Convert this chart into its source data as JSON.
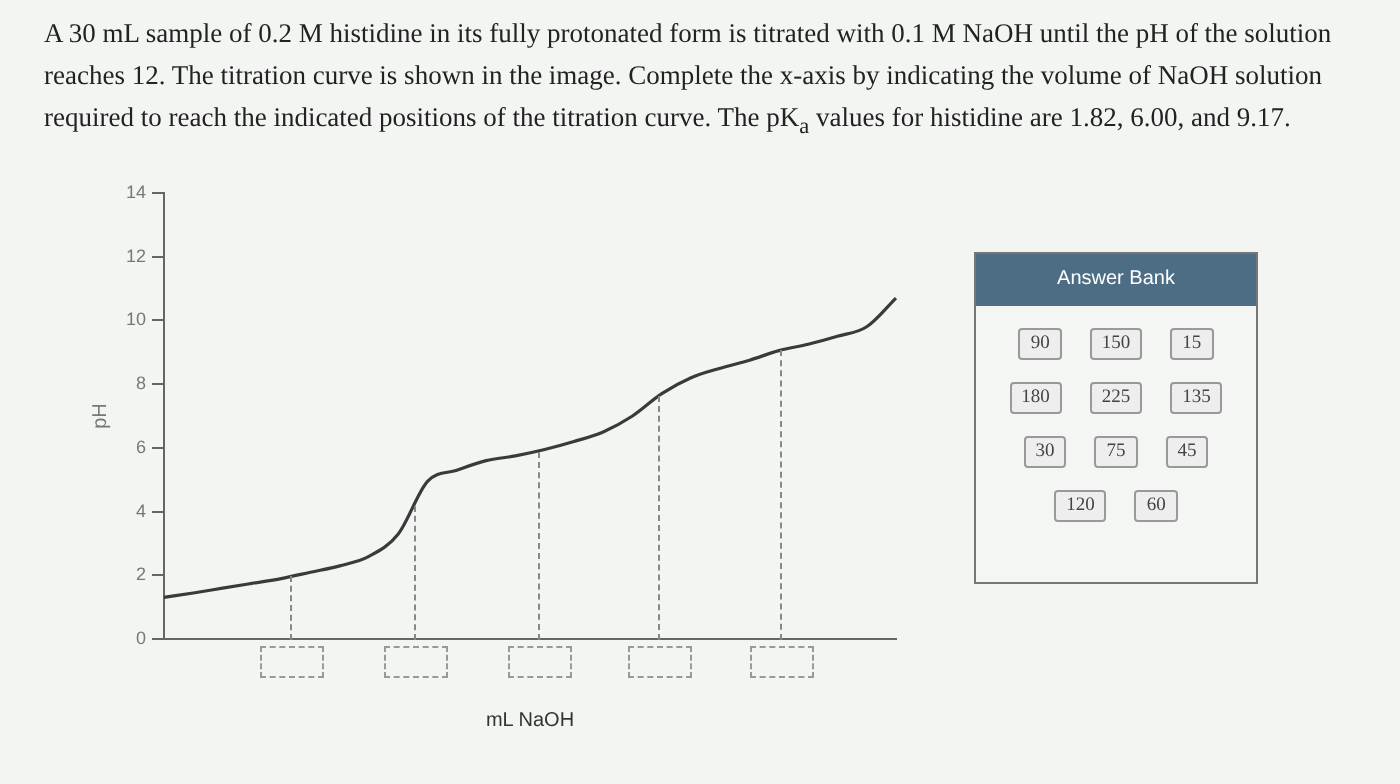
{
  "chart_data": [
    {
      "type": "line",
      "title": "A 30 mL sample of 0.2 M histidine in its fully protonated form is titrated with 0.1 M NaOH until the pH of the solution reaches 12. The titration curve is shown in the image. Complete the x-axis by indicating the volume of NaOH solution required to reach the indicated positions of the titration curve. The pK$_{a}$ values for histidine are 1.82, 6.00, and 9.17.",
      "xlabel": "mL NaOH",
      "ylabel": "pH",
      "categories": [
        null,
        null,
        null,
        null,
        null,
        null,
        null,
        null,
        null,
        null,
        null,
        null,
        null,
        null,
        null,
        null,
        null,
        null,
        null,
        null,
        null,
        null,
        null,
        null,
        null,
        null
      ],
      "series": [
        {
          "color": "#3a3a3a",
          "values": [
            1.31,
            1.45,
            1.6,
            1.75,
            1.9,
            2.1,
            2.3,
            2.6,
            3.3,
            4.95,
            5.3,
            5.6,
            5.75,
            5.95,
            6.2,
            6.5,
            7.0,
            7.7,
            8.2,
            8.5,
            8.75,
            9.05,
            9.25,
            9.5,
            9.8,
            10.7
          ]
        }
      ],
      "ylim": [
        0,
        14
      ],
      "yticks": [
        0,
        2,
        4,
        6,
        8,
        10,
        12,
        14
      ],
      "grid": false,
      "legend": false,
      "marker": "none",
      "line_style": "solid"
    },
    {
      "type": "other",
      "title": "Answer Bank",
      "annotations": [
        "90",
        "150",
        "15",
        "180",
        "225",
        "135",
        "30",
        "75",
        "45",
        "120",
        "60"
      ]
    }
  ]
}
